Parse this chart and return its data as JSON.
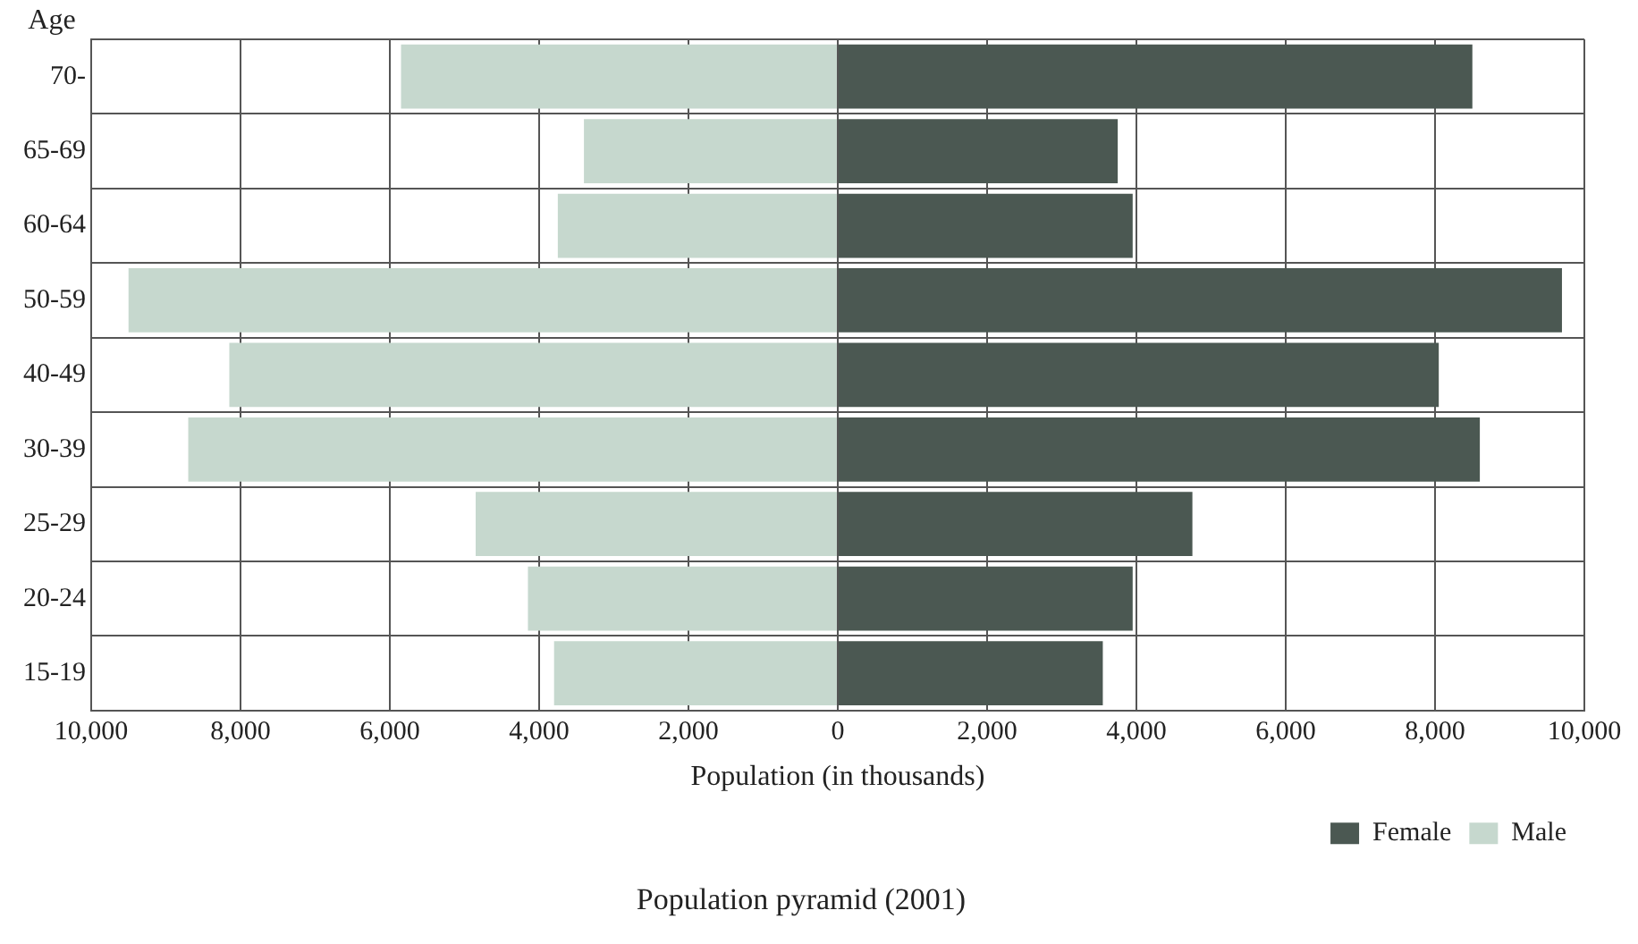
{
  "chart_data": {
    "type": "bar",
    "orientation": "horizontal",
    "stacked": true,
    "title": "Population pyramid (2001)",
    "xlabel": "Population (in thousands)",
    "ylabel": "Age",
    "categories": [
      "70-",
      "65-69",
      "60-64",
      "50-59",
      "40-49",
      "30-39",
      "25-29",
      "20-24",
      "15-19"
    ],
    "series": [
      {
        "name": "Female",
        "color": "#4b5852",
        "values": [
          8500,
          3750,
          3950,
          9700,
          8050,
          8600,
          4750,
          3950,
          3550
        ]
      },
      {
        "name": "Male",
        "color": "#c6d8ce",
        "values": [
          -5850,
          -3400,
          -3750,
          -9500,
          -8150,
          -8700,
          -4850,
          -4150,
          -3800
        ]
      }
    ],
    "xlim": [
      -10000,
      10000
    ],
    "xticks": [
      {
        "value": -10000,
        "label": "10,000"
      },
      {
        "value": -8000,
        "label": "8,000"
      },
      {
        "value": -6000,
        "label": "6,000"
      },
      {
        "value": -4000,
        "label": "4,000"
      },
      {
        "value": -2000,
        "label": "2,000"
      },
      0,
      {
        "value": 2000,
        "label": "2,000"
      },
      {
        "value": 4000,
        "label": "4,000"
      },
      {
        "value": 6000,
        "label": "6,000"
      },
      {
        "value": 8000,
        "label": "8,000"
      },
      {
        "value": 10000,
        "label": "10,000"
      }
    ],
    "grid": true,
    "legend": "bottom right"
  }
}
